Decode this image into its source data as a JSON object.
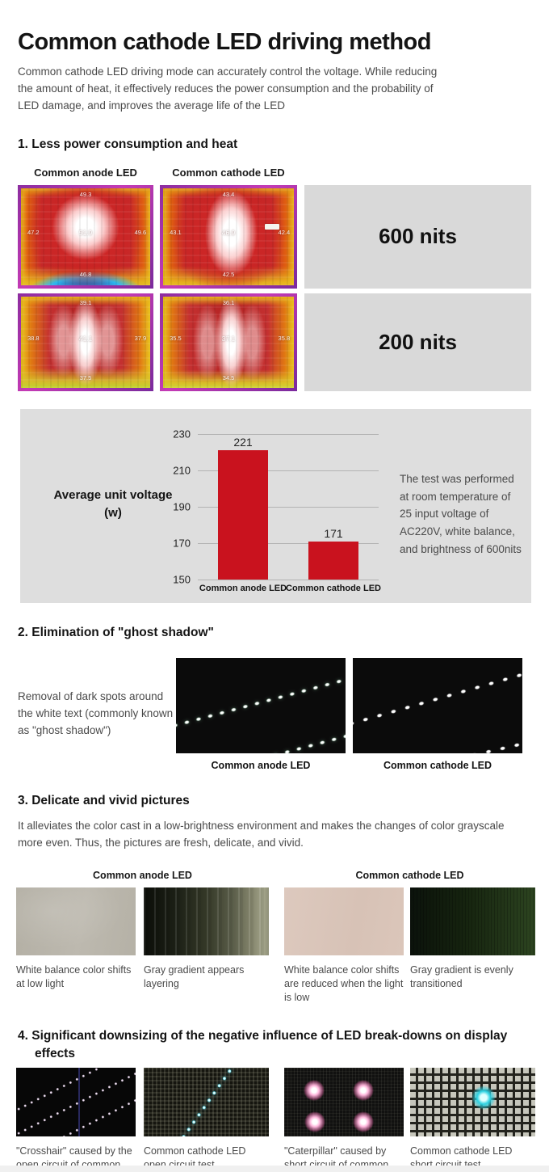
{
  "page": {
    "title": "Common cathode LED driving method",
    "intro": "Common cathode LED driving mode can accurately control the voltage. While reducing the amount of heat, it effectively reduces the power consumption and the probability of LED damage, and improves the average life of the LED"
  },
  "section1": {
    "heading": "1. Less power consumption and heat",
    "col_labels": [
      "Common anode LED",
      "Common cathode LED"
    ],
    "rows": [
      {
        "brightness": "600 nits",
        "anode_temps": {
          "top": "49.3",
          "left": "47.2",
          "center": "51.9",
          "right": "49.6",
          "bottom": "46.8"
        },
        "cathode_temps": {
          "top": "43.4",
          "left": "43.1",
          "center": "46.9",
          "right": "42.4",
          "bottom": "42.5"
        }
      },
      {
        "brightness": "200 nits",
        "anode_temps": {
          "top": "39.1",
          "left": "38.8",
          "center": "41.1",
          "right": "37.9",
          "bottom": "37.5"
        },
        "cathode_temps": {
          "top": "36.1",
          "left": "35.5",
          "center": "37.1",
          "right": "35.8",
          "bottom": "34.5"
        }
      }
    ]
  },
  "chart_data": {
    "type": "bar",
    "categories": [
      "Common anode LED",
      "Common cathode LED"
    ],
    "values": [
      221,
      171
    ],
    "title": "",
    "xlabel": "",
    "ylabel": "Average unit voltage (w)",
    "ylim": [
      150,
      230
    ],
    "yticks": [
      230,
      210,
      190,
      170,
      150
    ],
    "grid": true,
    "bar_color": "#c9121e",
    "panel_color": "#dedede",
    "annotation": "The test was performed at room temperature of 25 input voltage of AC220V, white balance, and brightness of 600nits"
  },
  "section2": {
    "heading": "2. Elimination of \"ghost shadow\"",
    "description": "Removal of dark spots around the white text (commonly known as \"ghost shadow\")",
    "captions": [
      "Common anode LED",
      "Common cathode LED"
    ]
  },
  "section3": {
    "heading": "3. Delicate and vivid pictures",
    "description": "It alleviates the color cast in a low-brightness environment and makes the changes of color grayscale more even. Thus, the pictures are fresh, delicate, and vivid.",
    "group_labels": [
      "Common anode LED",
      "Common cathode LED"
    ],
    "captions": [
      "White balance color shifts at low light",
      "Gray gradient appears layering",
      "White balance color shifts are reduced when the light is low",
      "Gray gradient is evenly transitioned"
    ]
  },
  "section4": {
    "heading": "4. Significant downsizing of the negative influence of LED break-downs on display  effects",
    "captions": [
      "\"Crosshair\" caused by the open circuit of common anode LED",
      "Common cathode LED open circuit test",
      "\"Caterpillar\" caused by short circuit of common anode LED",
      "Common cathode LED short circuit test"
    ]
  }
}
